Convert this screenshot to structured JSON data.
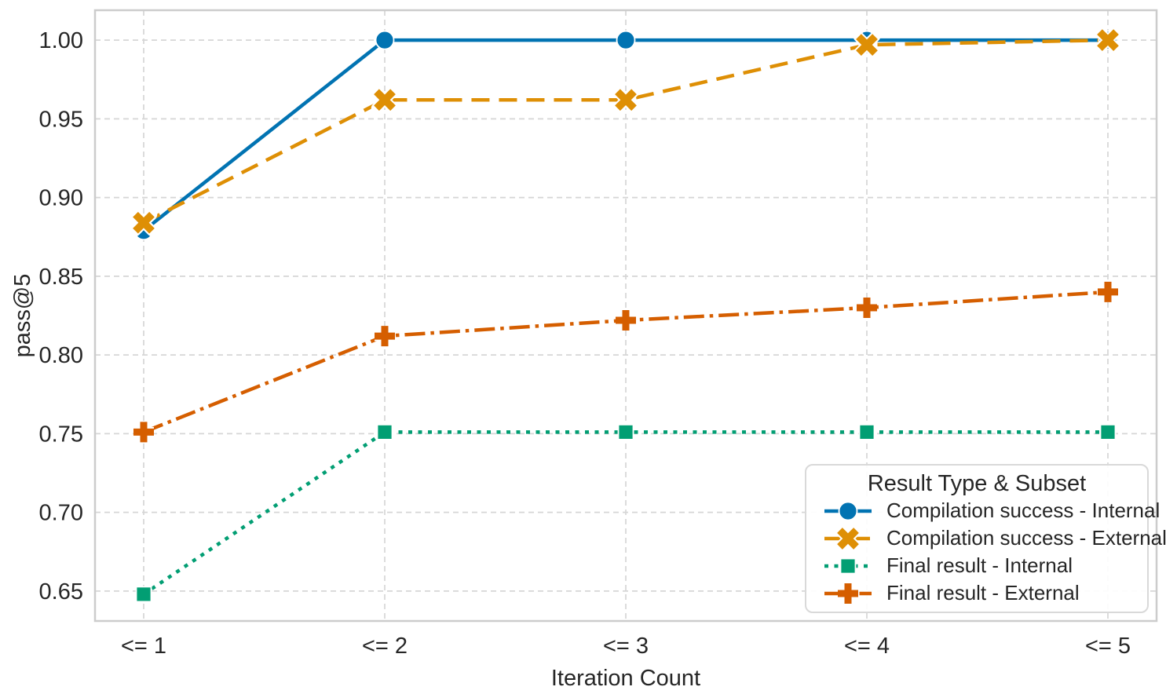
{
  "chart_data": {
    "type": "line",
    "title": "",
    "xlabel": "Iteration Count",
    "ylabel": "pass@5",
    "categories": [
      "<= 1",
      "<= 2",
      "<= 3",
      "<= 4",
      "<= 5"
    ],
    "y_ticks": [
      0.65,
      0.7,
      0.75,
      0.8,
      0.85,
      0.9,
      0.95,
      1.0
    ],
    "ylim": [
      0.631,
      1.019
    ],
    "grid": "both-axes-dashed",
    "legend": {
      "title": "Result Type & Subset",
      "position": "lower-right"
    },
    "series": [
      {
        "name": "Compilation success - Internal",
        "color": "#0173b2",
        "linestyle": "solid",
        "marker": "circle",
        "values": [
          0.879,
          1.0,
          1.0,
          1.0,
          1.0
        ]
      },
      {
        "name": "Compilation success - External",
        "color": "#de8f05",
        "linestyle": "dashed",
        "marker": "x",
        "values": [
          0.884,
          0.962,
          0.962,
          0.997,
          1.0
        ]
      },
      {
        "name": "Final result - Internal",
        "color": "#029e73",
        "linestyle": "dotted",
        "marker": "square",
        "values": [
          0.648,
          0.751,
          0.751,
          0.751,
          0.751
        ]
      },
      {
        "name": "Final result - External",
        "color": "#d55e00",
        "linestyle": "dashdot",
        "marker": "plus",
        "values": [
          0.751,
          0.812,
          0.822,
          0.83,
          0.84
        ]
      }
    ],
    "colors": {
      "spine": "#cccccc",
      "grid": "#d6d6d6",
      "text": "#262626",
      "background": "#ffffff"
    }
  }
}
